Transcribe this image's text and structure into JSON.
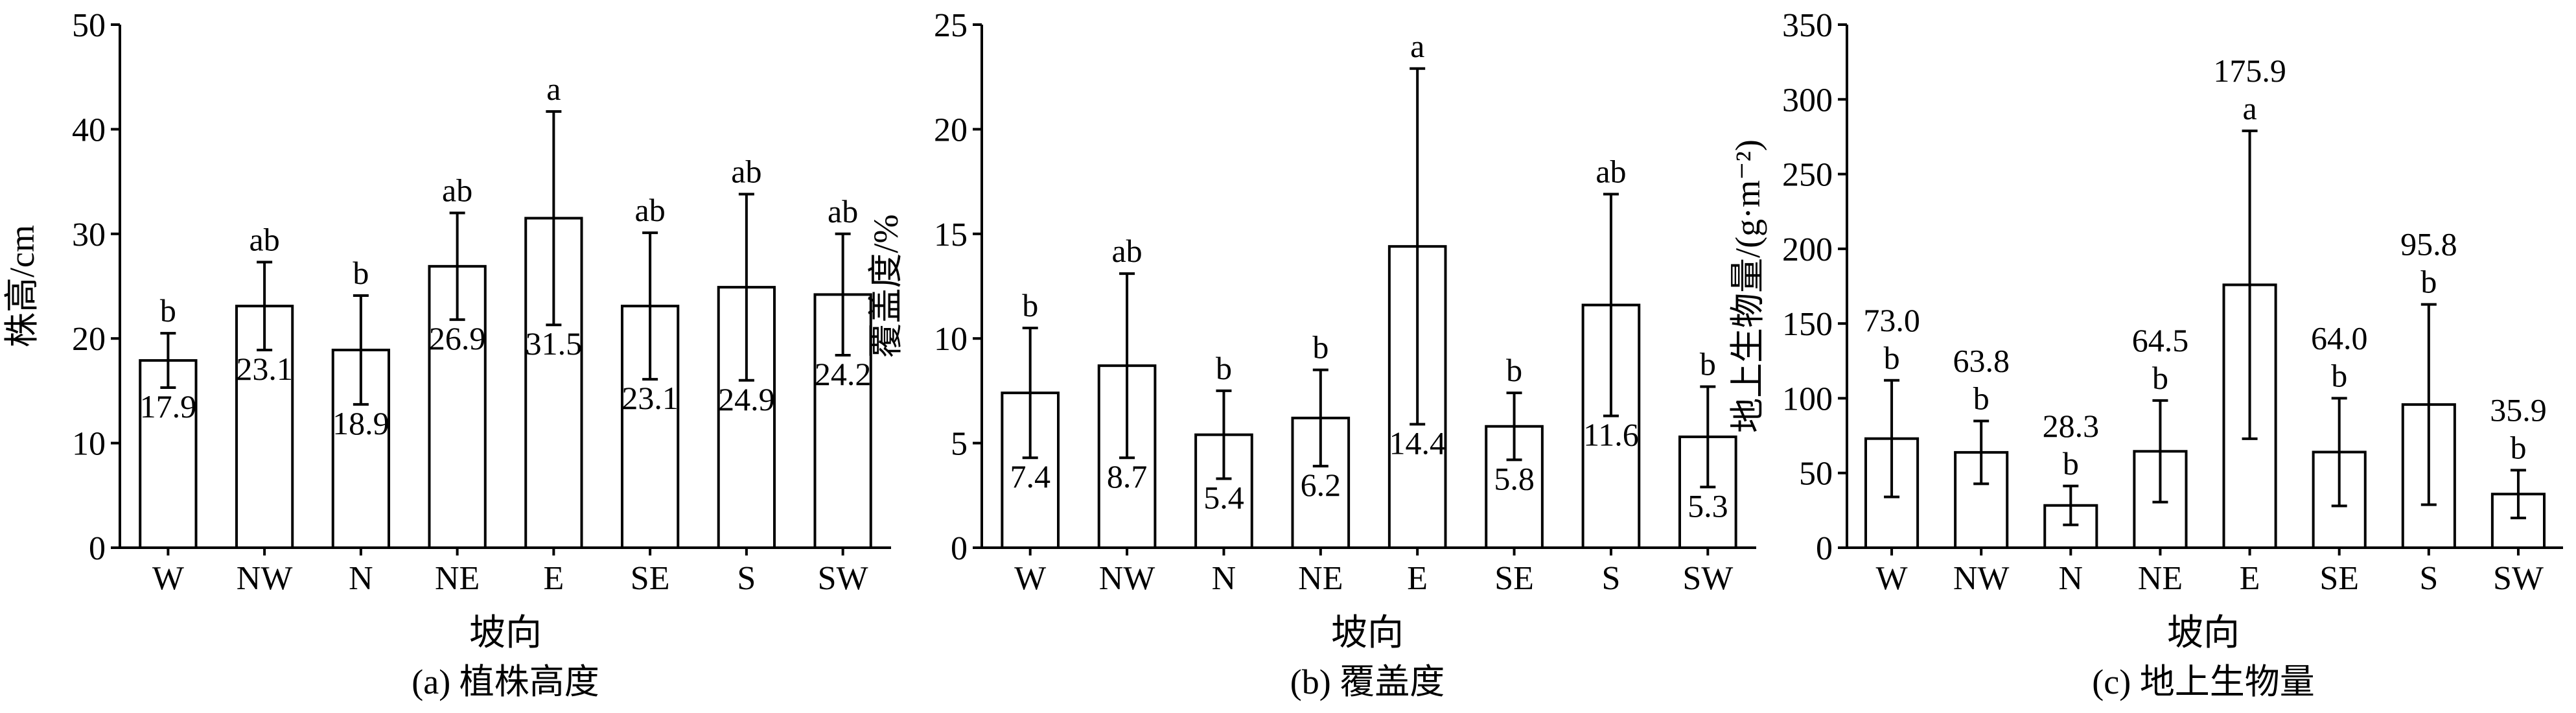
{
  "chart_data": [
    {
      "type": "bar",
      "categories": [
        "W",
        "NW",
        "N",
        "NE",
        "E",
        "SE",
        "S",
        "SW"
      ],
      "values": [
        17.9,
        23.1,
        18.9,
        26.9,
        31.5,
        23.1,
        24.9,
        24.2
      ],
      "value_labels": [
        "17.9",
        "23.1",
        "18.9",
        "26.9",
        "31.5",
        "23.1",
        "24.9",
        "24.2"
      ],
      "error": [
        2.6,
        4.2,
        5.2,
        5.1,
        10.2,
        7.0,
        8.9,
        5.8
      ],
      "significance": [
        "b",
        "ab",
        "b",
        "ab",
        "a",
        "ab",
        "ab",
        "ab"
      ],
      "ylabel": "株高/cm",
      "xlabel": "坡向",
      "caption": "(a) 植株高度",
      "ylim": [
        0,
        50
      ],
      "yticks": [
        0,
        10,
        20,
        30,
        40,
        50
      ],
      "value_label_position": "inside",
      "grid": false
    },
    {
      "type": "bar",
      "categories": [
        "W",
        "NW",
        "N",
        "NE",
        "E",
        "SE",
        "S",
        "SW"
      ],
      "values": [
        7.4,
        8.7,
        5.4,
        6.2,
        14.4,
        5.8,
        11.6,
        5.3
      ],
      "value_labels": [
        "7.4",
        "8.7",
        "5.4",
        "6.2",
        "14.4",
        "5.8",
        "11.6",
        "5.3"
      ],
      "error": [
        3.1,
        4.4,
        2.1,
        2.3,
        8.5,
        1.6,
        5.3,
        2.4
      ],
      "significance": [
        "b",
        "ab",
        "b",
        "b",
        "a",
        "b",
        "ab",
        "b"
      ],
      "ylabel": "覆盖度/%",
      "xlabel": "坡向",
      "caption": "(b) 覆盖度",
      "ylim": [
        0,
        25
      ],
      "yticks": [
        0,
        5,
        10,
        15,
        20,
        25
      ],
      "value_label_position": "inside",
      "grid": false
    },
    {
      "type": "bar",
      "categories": [
        "W",
        "NW",
        "N",
        "NE",
        "E",
        "SE",
        "S",
        "SW"
      ],
      "values": [
        73.0,
        63.8,
        28.3,
        64.5,
        175.9,
        64.0,
        95.8,
        35.9
      ],
      "value_labels": [
        "73.0",
        "63.8",
        "28.3",
        "64.5",
        "175.9",
        "64.0",
        "95.8",
        "35.9"
      ],
      "error": [
        39,
        21,
        13,
        34,
        103,
        36,
        67,
        16
      ],
      "significance": [
        "b",
        "b",
        "b",
        "b",
        "a",
        "b",
        "b",
        "b"
      ],
      "ylabel": "地上生物量/(g·m⁻²)",
      "xlabel": "坡向",
      "caption": "(c) 地上生物量",
      "ylim": [
        0,
        350
      ],
      "yticks": [
        0,
        50,
        100,
        150,
        200,
        250,
        300,
        350
      ],
      "value_label_position": "above",
      "grid": false
    }
  ]
}
